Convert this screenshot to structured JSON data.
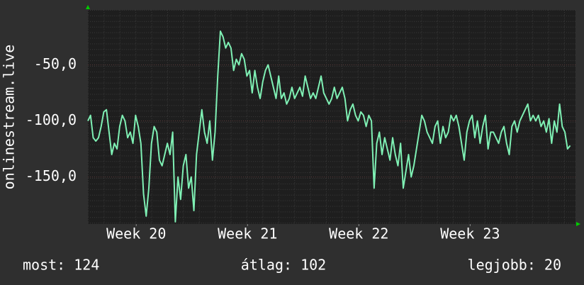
{
  "chart_data": {
    "type": "line",
    "ylabel": "onlinestream.live",
    "x": [
      0,
      4,
      8,
      12,
      16,
      20,
      24,
      28,
      32,
      36,
      40,
      44,
      48,
      52,
      56,
      60,
      64,
      68,
      72,
      76,
      80,
      84,
      88,
      92,
      96,
      100,
      104,
      108,
      112,
      116,
      120,
      124,
      128,
      132,
      136,
      140,
      144,
      148,
      152,
      156,
      160,
      164,
      168,
      172,
      176,
      180,
      184,
      188,
      192,
      196,
      200,
      204,
      208,
      212,
      216,
      220,
      224,
      228,
      232,
      236,
      240,
      244,
      248,
      252,
      256,
      260,
      264,
      268,
      272,
      276,
      280,
      284,
      288,
      292,
      296,
      300,
      304,
      308,
      312,
      316,
      320,
      324,
      328,
      332,
      336,
      340,
      344,
      348,
      352,
      356,
      360,
      364,
      368,
      372,
      376,
      380,
      384,
      388,
      392,
      396,
      400,
      404,
      408,
      412,
      416,
      420,
      424,
      428,
      432,
      436,
      440,
      444,
      448,
      452,
      456,
      460,
      464,
      468,
      472,
      476,
      480,
      484,
      488,
      492,
      496,
      500,
      504,
      508,
      512,
      516,
      520,
      524,
      528,
      532,
      536,
      540,
      544,
      548,
      552,
      556,
      560,
      564,
      568,
      572,
      576,
      580,
      584,
      588,
      592,
      596,
      600,
      604,
      608,
      612,
      616,
      620,
      624,
      628,
      632,
      636,
      640,
      644,
      648,
      652,
      656,
      660,
      664,
      668,
      672,
      676,
      680,
      684,
      688,
      692,
      696,
      700,
      704,
      708,
      712,
      716,
      720,
      724,
      728
    ],
    "series": [
      {
        "color": "#7ff0b4",
        "values": [
          -100,
          -95,
          -115,
          -118,
          -115,
          -105,
          -92,
          -90,
          -110,
          -130,
          -120,
          -125,
          -105,
          -95,
          -100,
          -115,
          -110,
          -120,
          -95,
          -105,
          -120,
          -165,
          -185,
          -160,
          -120,
          -105,
          -110,
          -135,
          -140,
          -130,
          -120,
          -130,
          -110,
          -190,
          -150,
          -170,
          -140,
          -130,
          -160,
          -150,
          -180,
          -130,
          -110,
          -90,
          -110,
          -120,
          -100,
          -135,
          -110,
          -60,
          -20,
          -25,
          -35,
          -30,
          -35,
          -55,
          -45,
          -50,
          -40,
          -45,
          -60,
          -55,
          -75,
          -55,
          -70,
          -80,
          -65,
          -55,
          -50,
          -60,
          -70,
          -80,
          -60,
          -80,
          -75,
          -85,
          -80,
          -70,
          -80,
          -75,
          -70,
          -78,
          -60,
          -70,
          -80,
          -75,
          -80,
          -70,
          -60,
          -75,
          -80,
          -85,
          -80,
          -70,
          -80,
          -75,
          -70,
          -80,
          -100,
          -90,
          -85,
          -95,
          -100,
          -92,
          -95,
          -105,
          -95,
          -100,
          -160,
          -120,
          -110,
          -130,
          -115,
          -125,
          -135,
          -115,
          -130,
          -140,
          -120,
          -160,
          -145,
          -130,
          -150,
          -140,
          -125,
          -110,
          -95,
          -100,
          -110,
          -115,
          -120,
          -105,
          -100,
          -120,
          -105,
          -115,
          -110,
          -95,
          -100,
          -95,
          -105,
          -120,
          -135,
          -110,
          -100,
          -95,
          -115,
          -100,
          -120,
          -105,
          -95,
          -125,
          -110,
          -110,
          -115,
          -120,
          -110,
          -105,
          -120,
          -130,
          -105,
          -100,
          -110,
          -100,
          -95,
          -90,
          -85,
          -100,
          -95,
          -100,
          -95,
          -105,
          -100,
          -110,
          -98,
          -120,
          -100,
          -110,
          -85,
          -105,
          -110,
          -125,
          -122
        ]
      }
    ],
    "xlim": [
      0,
      736
    ],
    "xticks": [
      {
        "value": 73,
        "label": "Week 20"
      },
      {
        "value": 241,
        "label": "Week 21"
      },
      {
        "value": 409,
        "label": "Week 22"
      },
      {
        "value": 577,
        "label": "Week 23"
      }
    ],
    "ylim": [
      -192,
      -1
    ],
    "yticks": [
      {
        "value": -150,
        "label": "-150,0"
      },
      {
        "value": -100,
        "label": "-100,0"
      },
      {
        "value": -50,
        "label": "-50,0"
      }
    ],
    "grid": true
  },
  "footer": {
    "current": "most: 124",
    "average": "átlag: 102",
    "best": "legjobb: 20"
  }
}
